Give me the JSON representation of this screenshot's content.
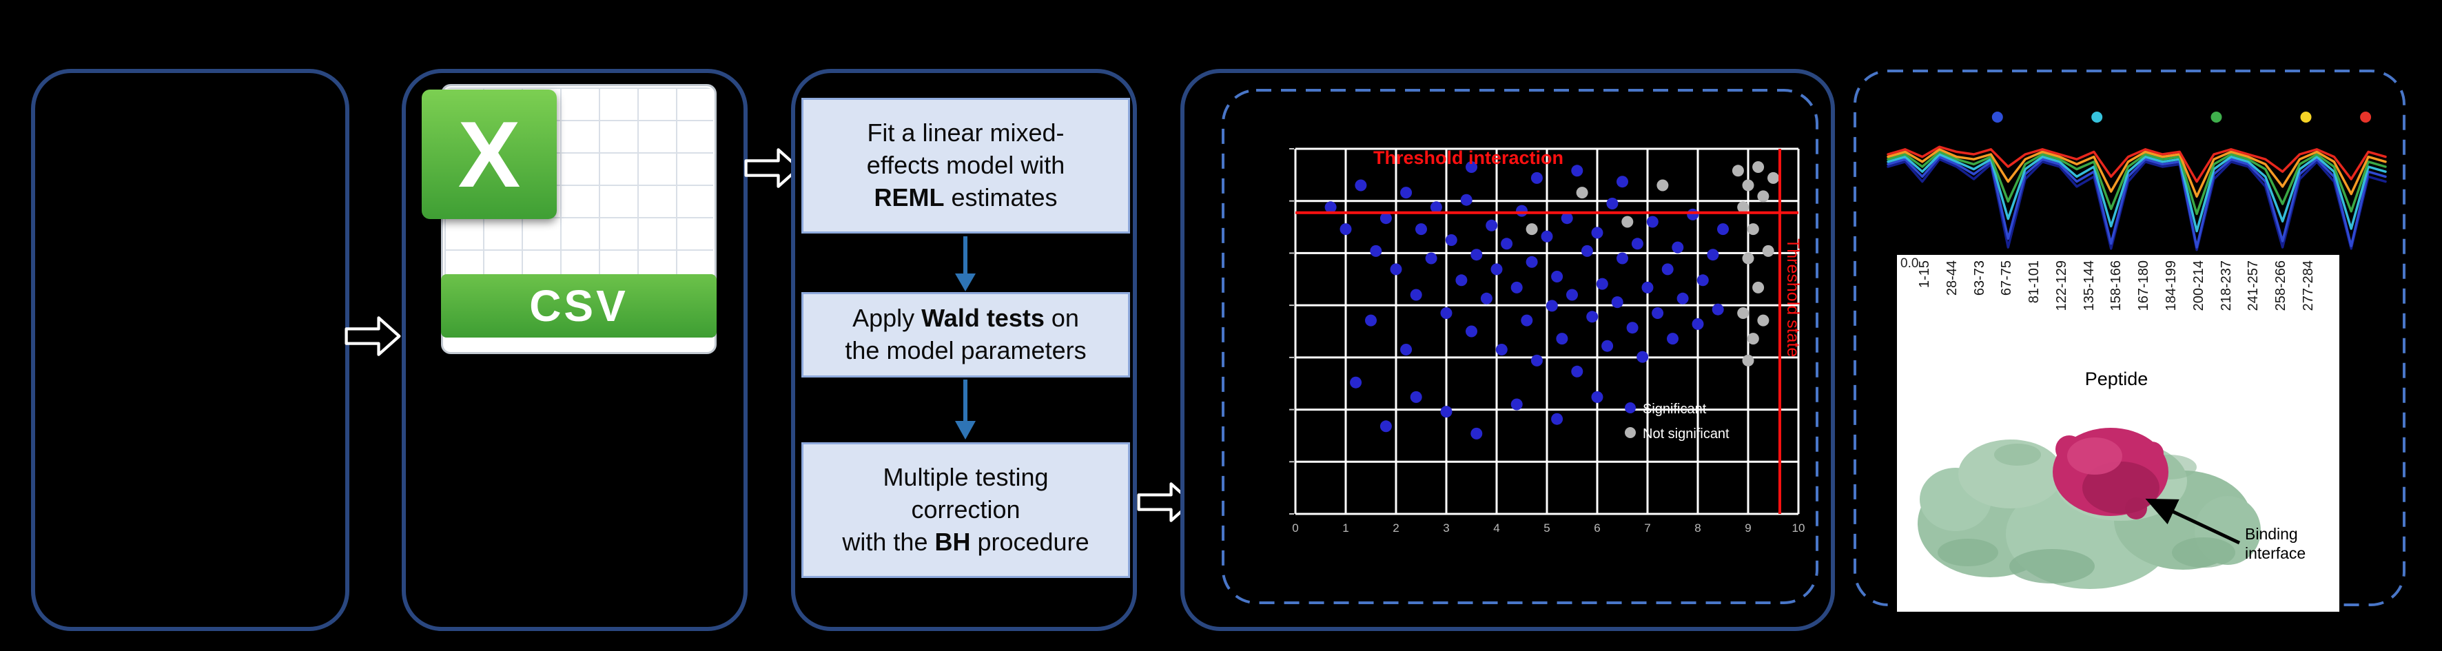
{
  "figure": {
    "background": "#000000"
  },
  "csv_panel": {
    "label": "CSV",
    "x_label": "X"
  },
  "steps_panel": {
    "steps": [
      {
        "pre": "Fit a linear mixed-\neffects model with\n",
        "bold": "REML",
        "post": " estimates"
      },
      {
        "pre": "Apply ",
        "bold": "Wald tests",
        "post": " on\nthe model parameters"
      },
      {
        "pre": "Multiple testing\ncorrection\nwith the ",
        "bold": "BH",
        "post": " procedure"
      }
    ]
  },
  "scatter_panel": {
    "title": "Threshold interaction",
    "side_label": "Threshold state",
    "grid": {
      "cols": 10,
      "rows": 7
    },
    "threshold_h": 0.175,
    "threshold_v": 0.963,
    "x_ticks": [
      "0",
      "1",
      "2",
      "3",
      "4",
      "5",
      "6",
      "7",
      "8",
      "9",
      "10"
    ],
    "legend": [
      {
        "label": "Significant",
        "color": "#2727cf"
      },
      {
        "label": "Not significant",
        "color": "#b5b5b5"
      }
    ],
    "colors": {
      "significant": "#2727cf",
      "not_significant": "#b5b5b5",
      "threshold": "#ff1010",
      "grid": "#ffffff"
    },
    "points_significant": [
      [
        0.07,
        0.16
      ],
      [
        0.1,
        0.22
      ],
      [
        0.13,
        0.1
      ],
      [
        0.16,
        0.28
      ],
      [
        0.18,
        0.19
      ],
      [
        0.2,
        0.33
      ],
      [
        0.22,
        0.12
      ],
      [
        0.24,
        0.4
      ],
      [
        0.25,
        0.22
      ],
      [
        0.27,
        0.3
      ],
      [
        0.28,
        0.16
      ],
      [
        0.3,
        0.45
      ],
      [
        0.31,
        0.25
      ],
      [
        0.33,
        0.36
      ],
      [
        0.34,
        0.14
      ],
      [
        0.35,
        0.5
      ],
      [
        0.36,
        0.29
      ],
      [
        0.38,
        0.41
      ],
      [
        0.39,
        0.21
      ],
      [
        0.4,
        0.33
      ],
      [
        0.41,
        0.55
      ],
      [
        0.42,
        0.26
      ],
      [
        0.44,
        0.38
      ],
      [
        0.45,
        0.17
      ],
      [
        0.46,
        0.47
      ],
      [
        0.47,
        0.31
      ],
      [
        0.48,
        0.58
      ],
      [
        0.5,
        0.24
      ],
      [
        0.51,
        0.43
      ],
      [
        0.52,
        0.35
      ],
      [
        0.53,
        0.52
      ],
      [
        0.54,
        0.19
      ],
      [
        0.55,
        0.4
      ],
      [
        0.56,
        0.61
      ],
      [
        0.58,
        0.28
      ],
      [
        0.59,
        0.46
      ],
      [
        0.6,
        0.23
      ],
      [
        0.61,
        0.37
      ],
      [
        0.62,
        0.54
      ],
      [
        0.63,
        0.15
      ],
      [
        0.64,
        0.42
      ],
      [
        0.65,
        0.3
      ],
      [
        0.67,
        0.49
      ],
      [
        0.68,
        0.26
      ],
      [
        0.69,
        0.57
      ],
      [
        0.7,
        0.38
      ],
      [
        0.71,
        0.2
      ],
      [
        0.72,
        0.45
      ],
      [
        0.74,
        0.33
      ],
      [
        0.75,
        0.52
      ],
      [
        0.76,
        0.27
      ],
      [
        0.77,
        0.41
      ],
      [
        0.79,
        0.18
      ],
      [
        0.8,
        0.48
      ],
      [
        0.81,
        0.36
      ],
      [
        0.83,
        0.29
      ],
      [
        0.84,
        0.44
      ],
      [
        0.85,
        0.22
      ],
      [
        0.3,
        0.72
      ],
      [
        0.24,
        0.68
      ],
      [
        0.18,
        0.76
      ],
      [
        0.12,
        0.64
      ],
      [
        0.36,
        0.78
      ],
      [
        0.44,
        0.7
      ],
      [
        0.52,
        0.74
      ],
      [
        0.6,
        0.68
      ],
      [
        0.48,
        0.08
      ],
      [
        0.56,
        0.06
      ],
      [
        0.35,
        0.05
      ],
      [
        0.65,
        0.09
      ],
      [
        0.22,
        0.55
      ],
      [
        0.15,
        0.47
      ]
    ],
    "points_not_significant": [
      [
        0.88,
        0.06
      ],
      [
        0.9,
        0.1
      ],
      [
        0.92,
        0.05
      ],
      [
        0.89,
        0.16
      ],
      [
        0.91,
        0.22
      ],
      [
        0.93,
        0.13
      ],
      [
        0.9,
        0.3
      ],
      [
        0.92,
        0.38
      ],
      [
        0.89,
        0.45
      ],
      [
        0.91,
        0.52
      ],
      [
        0.93,
        0.47
      ],
      [
        0.9,
        0.58
      ],
      [
        0.57,
        0.12
      ],
      [
        0.66,
        0.2
      ],
      [
        0.73,
        0.1
      ],
      [
        0.47,
        0.22
      ],
      [
        0.95,
        0.08
      ],
      [
        0.94,
        0.28
      ]
    ]
  },
  "kinetics_panel": {
    "y_axis_tick": "0.0",
    "x_axis_label": "Peptide",
    "annotation": "Binding interface",
    "peptide_labels": [
      "1-15",
      "28-44",
      "63-73",
      "67-75",
      "81-101",
      "122-129",
      "135-144",
      "158-166",
      "167-180",
      "184-199",
      "200-214",
      "218-237",
      "241-257",
      "258-266",
      "277-284"
    ],
    "time_dot_colors": [
      "#2e4fd9",
      "#37c3dd",
      "#3faf4c",
      "#f5d327",
      "#e8342a"
    ],
    "time_dot_x": [
      0.22,
      0.42,
      0.66,
      0.84,
      0.96
    ],
    "series": [
      {
        "name": "navy",
        "color": "#141f8f",
        "values": [
          0.7,
          0.74,
          0.58,
          0.76,
          0.7,
          0.6,
          0.72,
          0.05,
          0.6,
          0.74,
          0.7,
          0.54,
          0.62,
          0.04,
          0.58,
          0.74,
          0.7,
          0.72,
          0.03,
          0.6,
          0.74,
          0.7,
          0.54,
          0.05,
          0.6,
          0.74,
          0.58,
          0.04,
          0.62,
          0.58
        ]
      },
      {
        "name": "blue",
        "color": "#2f49d1",
        "values": [
          0.72,
          0.76,
          0.62,
          0.78,
          0.72,
          0.64,
          0.74,
          0.12,
          0.64,
          0.76,
          0.72,
          0.58,
          0.66,
          0.08,
          0.62,
          0.76,
          0.72,
          0.74,
          0.05,
          0.64,
          0.76,
          0.72,
          0.58,
          0.1,
          0.64,
          0.76,
          0.62,
          0.06,
          0.66,
          0.62
        ]
      },
      {
        "name": "cyan",
        "color": "#35bcd9",
        "values": [
          0.74,
          0.78,
          0.66,
          0.8,
          0.74,
          0.68,
          0.76,
          0.28,
          0.68,
          0.78,
          0.74,
          0.62,
          0.7,
          0.22,
          0.66,
          0.78,
          0.74,
          0.76,
          0.18,
          0.68,
          0.78,
          0.74,
          0.62,
          0.26,
          0.68,
          0.78,
          0.66,
          0.2,
          0.7,
          0.66
        ]
      },
      {
        "name": "green",
        "color": "#3aa845",
        "values": [
          0.76,
          0.8,
          0.7,
          0.82,
          0.76,
          0.72,
          0.78,
          0.42,
          0.72,
          0.8,
          0.76,
          0.68,
          0.74,
          0.36,
          0.7,
          0.8,
          0.76,
          0.78,
          0.32,
          0.72,
          0.8,
          0.76,
          0.68,
          0.4,
          0.72,
          0.8,
          0.7,
          0.34,
          0.74,
          0.7
        ]
      },
      {
        "name": "orange",
        "color": "#f59a23",
        "values": [
          0.78,
          0.82,
          0.74,
          0.84,
          0.78,
          0.76,
          0.8,
          0.58,
          0.76,
          0.82,
          0.78,
          0.72,
          0.78,
          0.5,
          0.74,
          0.82,
          0.78,
          0.8,
          0.46,
          0.76,
          0.82,
          0.78,
          0.72,
          0.54,
          0.76,
          0.82,
          0.74,
          0.48,
          0.78,
          0.74
        ]
      },
      {
        "name": "red",
        "color": "#e8271d",
        "values": [
          0.8,
          0.84,
          0.78,
          0.86,
          0.82,
          0.8,
          0.84,
          0.7,
          0.8,
          0.84,
          0.8,
          0.76,
          0.82,
          0.62,
          0.78,
          0.84,
          0.8,
          0.82,
          0.58,
          0.8,
          0.84,
          0.8,
          0.76,
          0.66,
          0.8,
          0.84,
          0.78,
          0.6,
          0.82,
          0.78
        ]
      }
    ],
    "protein_colors": {
      "surface": "#9cc3a6",
      "binding_interface": "#c42a6b"
    }
  }
}
